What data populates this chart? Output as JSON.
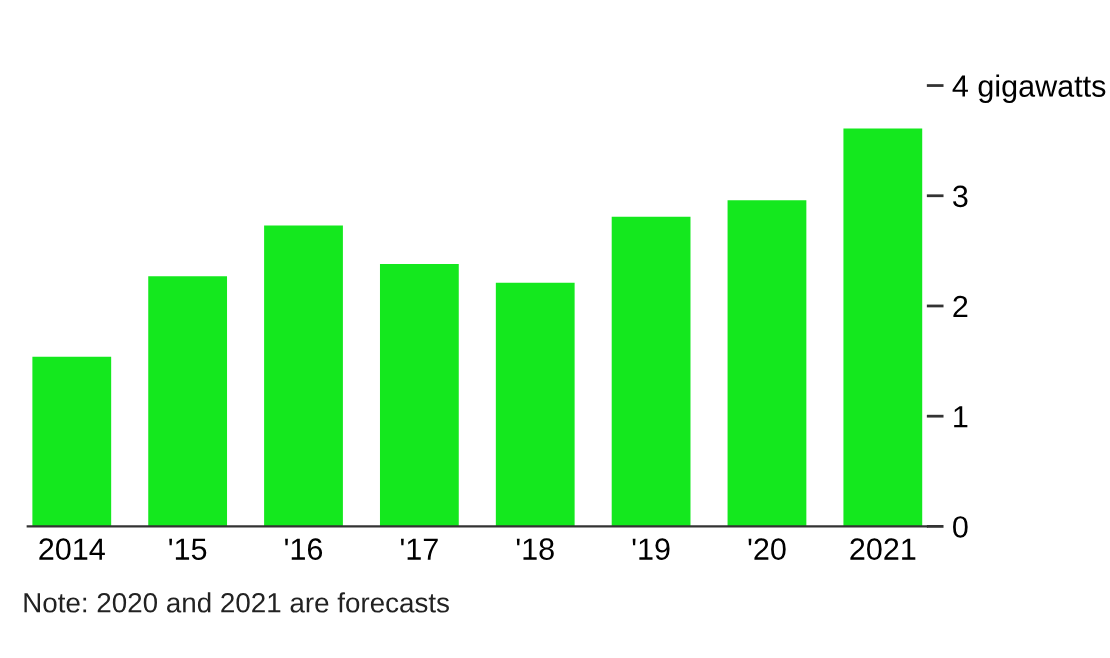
{
  "chart_data": {
    "type": "bar",
    "categories": [
      "2014",
      "'15",
      "'16",
      "'17",
      "'18",
      "'19",
      "'20",
      "2021"
    ],
    "values": [
      1.54,
      2.27,
      2.73,
      2.38,
      2.21,
      2.81,
      2.96,
      3.61
    ],
    "color": "#14e81e",
    "ylim": [
      0,
      4
    ],
    "yticks": [
      0,
      1,
      2,
      3,
      {
        "value": 4,
        "label": "4 gigawatts"
      }
    ],
    "grid": false,
    "legend": false,
    "annotations": [
      "Note: 2020 and 2021 are forecasts"
    ]
  }
}
